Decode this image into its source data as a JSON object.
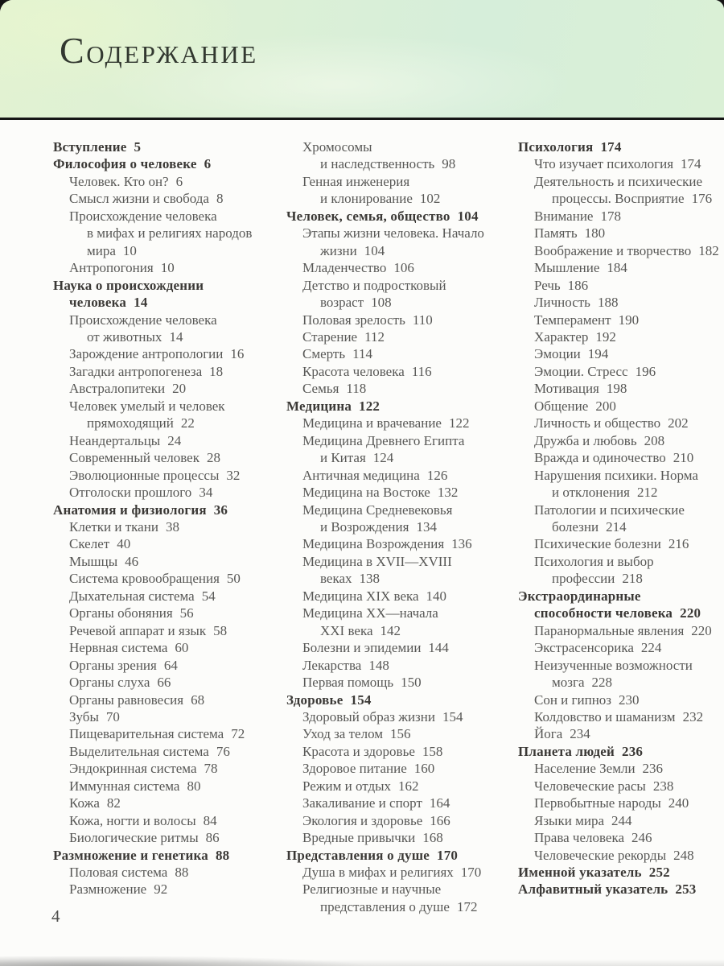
{
  "header": {
    "title": "Содержание"
  },
  "folio": {
    "page_number": "4"
  },
  "colors": {
    "header_bg": "#dcf0d6",
    "rule": "#161616",
    "text": "#585856",
    "bold_text": "#3b3936",
    "page_bg": "#fcfcfa"
  },
  "toc": {
    "columns": [
      [
        {
          "t": "Вступление",
          "p": "5",
          "s": "h"
        },
        {
          "t": "Философия о человеке",
          "p": "6",
          "s": "h"
        },
        {
          "t": "Человек. Кто он?",
          "p": "6",
          "s": "sub"
        },
        {
          "t": "Смысл жизни и свобода",
          "p": "8",
          "s": "sub"
        },
        {
          "t": "Происхождение человека",
          "p": "",
          "s": "sub"
        },
        {
          "t": "в мифах и религиях народов",
          "p": "",
          "s": "cont"
        },
        {
          "t": "мира",
          "p": "10",
          "s": "cont"
        },
        {
          "t": "Антропогония",
          "p": "10",
          "s": "sub"
        },
        {
          "t": "Наука о происхождении",
          "p": "",
          "s": "h"
        },
        {
          "t": "человека",
          "p": "14",
          "s": "hc"
        },
        {
          "t": "Происхождение человека",
          "p": "",
          "s": "sub"
        },
        {
          "t": "от животных",
          "p": "14",
          "s": "cont"
        },
        {
          "t": "Зарождение антропологии",
          "p": "16",
          "s": "sub"
        },
        {
          "t": "Загадки антропогенеза",
          "p": "18",
          "s": "sub"
        },
        {
          "t": "Австралопитеки",
          "p": "20",
          "s": "sub"
        },
        {
          "t": "Человек умелый и человек",
          "p": "",
          "s": "sub"
        },
        {
          "t": "прямоходящий",
          "p": "22",
          "s": "cont"
        },
        {
          "t": "Неандертальцы",
          "p": "24",
          "s": "sub"
        },
        {
          "t": "Современный человек",
          "p": "28",
          "s": "sub"
        },
        {
          "t": "Эволюционные процессы",
          "p": "32",
          "s": "sub"
        },
        {
          "t": "Отголоски прошлого",
          "p": "34",
          "s": "sub"
        },
        {
          "t": "Анатомия и физиология",
          "p": "36",
          "s": "h"
        },
        {
          "t": "Клетки и ткани",
          "p": "38",
          "s": "sub"
        },
        {
          "t": "Скелет",
          "p": "40",
          "s": "sub"
        },
        {
          "t": "Мышцы",
          "p": "46",
          "s": "sub"
        },
        {
          "t": "Система кровообращения",
          "p": "50",
          "s": "sub"
        },
        {
          "t": "Дыхательная система",
          "p": "54",
          "s": "sub"
        },
        {
          "t": "Органы обоняния",
          "p": "56",
          "s": "sub"
        },
        {
          "t": "Речевой аппарат и язык",
          "p": "58",
          "s": "sub"
        },
        {
          "t": "Нервная система",
          "p": "60",
          "s": "sub"
        },
        {
          "t": "Органы зрения",
          "p": "64",
          "s": "sub"
        },
        {
          "t": "Органы слуха",
          "p": "66",
          "s": "sub"
        },
        {
          "t": "Органы равновесия",
          "p": "68",
          "s": "sub"
        },
        {
          "t": "Зубы",
          "p": "70",
          "s": "sub"
        },
        {
          "t": "Пищеварительная система",
          "p": "72",
          "s": "sub"
        },
        {
          "t": "Выделительная система",
          "p": "76",
          "s": "sub"
        },
        {
          "t": "Эндокринная система",
          "p": "78",
          "s": "sub"
        },
        {
          "t": "Иммунная система",
          "p": "80",
          "s": "sub"
        },
        {
          "t": "Кожа",
          "p": "82",
          "s": "sub"
        },
        {
          "t": "Кожа, ногти и волосы",
          "p": "84",
          "s": "sub"
        },
        {
          "t": "Биологические ритмы",
          "p": "86",
          "s": "sub"
        },
        {
          "t": "Размножение и генетика",
          "p": "88",
          "s": "h"
        },
        {
          "t": "Половая система",
          "p": "88",
          "s": "sub"
        },
        {
          "t": "Размножение",
          "p": "92",
          "s": "sub"
        }
      ],
      [
        {
          "t": "Хромосомы",
          "p": "",
          "s": "sub"
        },
        {
          "t": "и наследственность",
          "p": "98",
          "s": "cont"
        },
        {
          "t": "Генная инженерия",
          "p": "",
          "s": "sub"
        },
        {
          "t": "и клонирование",
          "p": "102",
          "s": "cont"
        },
        {
          "t": "Человек, семья, общество",
          "p": "104",
          "s": "h"
        },
        {
          "t": "Этапы жизни человека. Начало",
          "p": "",
          "s": "sub"
        },
        {
          "t": "жизни",
          "p": "104",
          "s": "cont"
        },
        {
          "t": "Младенчество",
          "p": "106",
          "s": "sub"
        },
        {
          "t": "Детство и подростковый",
          "p": "",
          "s": "sub"
        },
        {
          "t": "возраст",
          "p": "108",
          "s": "cont"
        },
        {
          "t": "Половая зрелость",
          "p": "110",
          "s": "sub"
        },
        {
          "t": "Старение",
          "p": "112",
          "s": "sub"
        },
        {
          "t": "Смерть",
          "p": "114",
          "s": "sub"
        },
        {
          "t": "Красота человека",
          "p": "116",
          "s": "sub"
        },
        {
          "t": "Семья",
          "p": "118",
          "s": "sub"
        },
        {
          "t": "Медицина",
          "p": "122",
          "s": "h"
        },
        {
          "t": "Медицина и врачевание",
          "p": "122",
          "s": "sub"
        },
        {
          "t": "Медицина Древнего Египта",
          "p": "",
          "s": "sub"
        },
        {
          "t": "и Китая",
          "p": "124",
          "s": "cont"
        },
        {
          "t": "Античная медицина",
          "p": "126",
          "s": "sub"
        },
        {
          "t": "Медицина на Востоке",
          "p": "132",
          "s": "sub"
        },
        {
          "t": "Медицина Средневековья",
          "p": "",
          "s": "sub"
        },
        {
          "t": "и Возрождения",
          "p": "134",
          "s": "cont"
        },
        {
          "t": "Медицина Возрождения",
          "p": "136",
          "s": "sub"
        },
        {
          "t": "Медицина в XVII—XVIII",
          "p": "",
          "s": "sub"
        },
        {
          "t": "веках",
          "p": "138",
          "s": "cont"
        },
        {
          "t": "Медицина XIX века",
          "p": "140",
          "s": "sub"
        },
        {
          "t": "Медицина XX—начала",
          "p": "",
          "s": "sub"
        },
        {
          "t": "XXI века",
          "p": "142",
          "s": "cont"
        },
        {
          "t": "Болезни и эпидемии",
          "p": "144",
          "s": "sub"
        },
        {
          "t": "Лекарства",
          "p": "148",
          "s": "sub"
        },
        {
          "t": "Первая помощь",
          "p": "150",
          "s": "sub"
        },
        {
          "t": "Здоровье",
          "p": "154",
          "s": "h"
        },
        {
          "t": "Здоровый образ жизни",
          "p": "154",
          "s": "sub"
        },
        {
          "t": "Уход за телом",
          "p": "156",
          "s": "sub"
        },
        {
          "t": "Красота и здоровье",
          "p": "158",
          "s": "sub"
        },
        {
          "t": "Здоровое питание",
          "p": "160",
          "s": "sub"
        },
        {
          "t": "Режим и отдых",
          "p": "162",
          "s": "sub"
        },
        {
          "t": "Закаливание и спорт",
          "p": "164",
          "s": "sub"
        },
        {
          "t": "Экология и здоровье",
          "p": "166",
          "s": "sub"
        },
        {
          "t": "Вредные привычки",
          "p": "168",
          "s": "sub"
        },
        {
          "t": "Представления о душе",
          "p": "170",
          "s": "h"
        },
        {
          "t": "Душа в мифах и религиях",
          "p": "170",
          "s": "sub"
        },
        {
          "t": "Религиозные и научные",
          "p": "",
          "s": "sub"
        },
        {
          "t": "представления о душе",
          "p": "172",
          "s": "cont"
        }
      ],
      [
        {
          "t": "Психология",
          "p": "174",
          "s": "h"
        },
        {
          "t": "Что изучает психология",
          "p": "174",
          "s": "sub"
        },
        {
          "t": "Деятельность и психические",
          "p": "",
          "s": "sub"
        },
        {
          "t": "процессы. Восприятие",
          "p": "176",
          "s": "cont"
        },
        {
          "t": "Внимание",
          "p": "178",
          "s": "sub"
        },
        {
          "t": "Память",
          "p": "180",
          "s": "sub"
        },
        {
          "t": "Воображение и творчество",
          "p": "182",
          "s": "sub"
        },
        {
          "t": "Мышление",
          "p": "184",
          "s": "sub"
        },
        {
          "t": "Речь",
          "p": "186",
          "s": "sub"
        },
        {
          "t": "Личность",
          "p": "188",
          "s": "sub"
        },
        {
          "t": "Темперамент",
          "p": "190",
          "s": "sub"
        },
        {
          "t": "Характер",
          "p": "192",
          "s": "sub"
        },
        {
          "t": "Эмоции",
          "p": "194",
          "s": "sub"
        },
        {
          "t": "Эмоции. Стресс",
          "p": "196",
          "s": "sub"
        },
        {
          "t": "Мотивация",
          "p": "198",
          "s": "sub"
        },
        {
          "t": "Общение",
          "p": "200",
          "s": "sub"
        },
        {
          "t": "Личность и общество",
          "p": "202",
          "s": "sub"
        },
        {
          "t": "Дружба и любовь",
          "p": "208",
          "s": "sub"
        },
        {
          "t": "Вражда и одиночество",
          "p": "210",
          "s": "sub"
        },
        {
          "t": "Нарушения психики. Норма",
          "p": "",
          "s": "sub"
        },
        {
          "t": "и отклонения",
          "p": "212",
          "s": "cont"
        },
        {
          "t": "Патологии и психические",
          "p": "",
          "s": "sub"
        },
        {
          "t": "болезни",
          "p": "214",
          "s": "cont"
        },
        {
          "t": "Психические болезни",
          "p": "216",
          "s": "sub"
        },
        {
          "t": "Психология и выбор",
          "p": "",
          "s": "sub"
        },
        {
          "t": "профессии",
          "p": "218",
          "s": "cont"
        },
        {
          "t": "Экстраординарные",
          "p": "",
          "s": "h"
        },
        {
          "t": "способности человека",
          "p": "220",
          "s": "hc"
        },
        {
          "t": "Паранормальные явления",
          "p": "220",
          "s": "sub"
        },
        {
          "t": "Экстрасенсорика",
          "p": "224",
          "s": "sub"
        },
        {
          "t": "Неизученные возможности",
          "p": "",
          "s": "sub"
        },
        {
          "t": "мозга",
          "p": "228",
          "s": "cont"
        },
        {
          "t": "Сон и гипноз",
          "p": "230",
          "s": "sub"
        },
        {
          "t": "Колдовство и шаманизм",
          "p": "232",
          "s": "sub"
        },
        {
          "t": "Йога",
          "p": "234",
          "s": "sub"
        },
        {
          "t": "Планета людей",
          "p": "236",
          "s": "h"
        },
        {
          "t": "Население Земли",
          "p": "236",
          "s": "sub"
        },
        {
          "t": "Человеческие расы",
          "p": "238",
          "s": "sub"
        },
        {
          "t": "Первобытные народы",
          "p": "240",
          "s": "sub"
        },
        {
          "t": "Языки мира",
          "p": "244",
          "s": "sub"
        },
        {
          "t": "Права человека",
          "p": "246",
          "s": "sub"
        },
        {
          "t": "Человеческие рекорды",
          "p": "248",
          "s": "sub"
        },
        {
          "t": "Именной указатель",
          "p": "252",
          "s": "h"
        },
        {
          "t": "Алфавитный указатель",
          "p": "253",
          "s": "h"
        }
      ]
    ]
  }
}
